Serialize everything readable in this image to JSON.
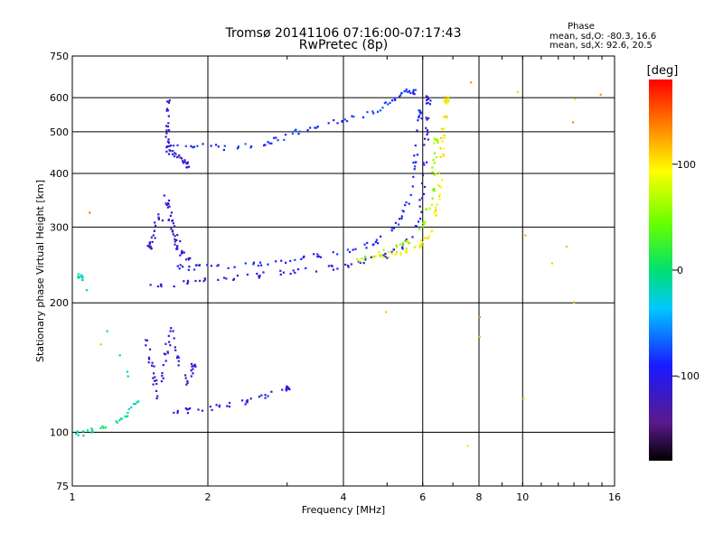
{
  "chart_data": {
    "type": "scatter",
    "title": "Tromsø 20141106 07:16:00-07:17:43",
    "subtitle": "RwPretec (8p)",
    "xlabel": "Frequency [MHz]",
    "ylabel": "Stationary phase Virtual Height [km]",
    "xscale": "log",
    "yscale": "log",
    "xlim": [
      1,
      16
    ],
    "ylim": [
      75,
      750
    ],
    "xticks": [
      1,
      2,
      4,
      6,
      8,
      10,
      16
    ],
    "yticks": [
      75,
      100,
      200,
      300,
      400,
      500,
      600,
      750
    ],
    "xtick_labels": [
      "1",
      "2",
      "4",
      "6",
      "8",
      "10",
      "16"
    ],
    "ytick_labels": [
      "75",
      "100",
      "200",
      "300",
      "400",
      "500",
      "600",
      "750"
    ],
    "grid": true,
    "stats": {
      "title": "Phase",
      "line1": "mean, sd,O: -80.3, 16.6",
      "line2": "mean, sd,X: 92.6, 20.5"
    },
    "colorbar": {
      "label": "[deg]",
      "range": [
        -180,
        180
      ],
      "ticks": [
        100,
        0,
        -100
      ],
      "tick_labels": [
        "100",
        "0",
        "-100"
      ]
    },
    "traces": [
      {
        "trace": "F2-O-lower",
        "phase": -110,
        "points": [
          [
            1.47,
            220
          ],
          [
            1.6,
            221
          ],
          [
            1.8,
            224
          ],
          [
            2.0,
            227
          ],
          [
            2.3,
            230
          ],
          [
            2.6,
            233
          ],
          [
            3.0,
            236
          ],
          [
            3.4,
            240
          ],
          [
            3.8,
            244
          ],
          [
            4.2,
            248
          ],
          [
            4.6,
            253
          ],
          [
            5.0,
            260
          ],
          [
            5.4,
            270
          ],
          [
            5.7,
            290
          ],
          [
            5.9,
            330
          ],
          [
            6.0,
            380
          ],
          [
            6.05,
            430
          ],
          [
            6.1,
            500
          ],
          [
            6.12,
            560
          ],
          [
            6.15,
            600
          ]
        ]
      },
      {
        "trace": "F2-O-upper",
        "phase": -95,
        "points": [
          [
            1.6,
            245
          ],
          [
            1.8,
            243
          ],
          [
            2.0,
            243
          ],
          [
            2.3,
            245
          ],
          [
            2.6,
            248
          ],
          [
            3.0,
            252
          ],
          [
            3.4,
            257
          ],
          [
            3.8,
            262
          ],
          [
            4.2,
            268
          ],
          [
            4.6,
            276
          ],
          [
            5.0,
            290
          ],
          [
            5.3,
            310
          ],
          [
            5.5,
            340
          ],
          [
            5.65,
            380
          ],
          [
            5.75,
            430
          ],
          [
            5.85,
            500
          ],
          [
            5.9,
            560
          ]
        ]
      },
      {
        "trace": "F2-cusp",
        "phase": -110,
        "points": [
          [
            1.6,
            360
          ],
          [
            1.62,
            340
          ],
          [
            1.64,
            320
          ],
          [
            1.66,
            300
          ],
          [
            1.68,
            285
          ],
          [
            1.7,
            272
          ],
          [
            1.74,
            262
          ],
          [
            1.8,
            255
          ],
          [
            1.9,
            248
          ],
          [
            1.55,
            320
          ],
          [
            1.52,
            300
          ],
          [
            1.5,
            285
          ],
          [
            1.48,
            270
          ]
        ]
      },
      {
        "trace": "F-upper-band",
        "phase": -85,
        "points": [
          [
            1.6,
            470
          ],
          [
            1.8,
            470
          ],
          [
            2.0,
            465
          ],
          [
            2.2,
            462
          ],
          [
            2.5,
            465
          ],
          [
            2.8,
            480
          ],
          [
            3.0,
            495
          ],
          [
            3.3,
            510
          ],
          [
            3.6,
            520
          ],
          [
            4.0,
            535
          ],
          [
            4.4,
            550
          ],
          [
            4.8,
            565
          ],
          [
            5.1,
            590
          ],
          [
            5.3,
            615
          ],
          [
            5.5,
            630
          ],
          [
            5.7,
            620
          ]
        ]
      },
      {
        "trace": "F-upper-spike",
        "phase": -110,
        "points": [
          [
            1.62,
            600
          ],
          [
            1.62,
            560
          ],
          [
            1.62,
            520
          ],
          [
            1.62,
            490
          ],
          [
            1.62,
            460
          ],
          [
            1.65,
            450
          ],
          [
            1.7,
            440
          ],
          [
            1.75,
            430
          ],
          [
            1.8,
            420
          ]
        ]
      },
      {
        "trace": "F2-X",
        "phase": 95,
        "points": [
          [
            4.6,
            255
          ],
          [
            5.0,
            258
          ],
          [
            5.3,
            262
          ],
          [
            5.6,
            268
          ],
          [
            5.9,
            275
          ],
          [
            6.1,
            285
          ],
          [
            6.3,
            300
          ],
          [
            6.4,
            330
          ],
          [
            6.5,
            370
          ],
          [
            6.55,
            410
          ],
          [
            6.6,
            460
          ],
          [
            6.65,
            510
          ],
          [
            6.7,
            560
          ],
          [
            6.75,
            600
          ]
        ]
      },
      {
        "trace": "F2-X-mixed",
        "phase": 60,
        "points": [
          [
            4.2,
            252
          ],
          [
            4.6,
            258
          ],
          [
            5.0,
            265
          ],
          [
            5.4,
            275
          ],
          [
            5.8,
            290
          ],
          [
            6.0,
            310
          ],
          [
            6.2,
            340
          ],
          [
            6.3,
            380
          ],
          [
            6.35,
            430
          ],
          [
            6.4,
            480
          ]
        ]
      },
      {
        "trace": "E-layer",
        "phase": -105,
        "points": [
          [
            1.65,
            112
          ],
          [
            1.8,
            113
          ],
          [
            2.0,
            114
          ],
          [
            2.2,
            116
          ],
          [
            2.4,
            118
          ],
          [
            2.6,
            121
          ],
          [
            2.8,
            124
          ],
          [
            3.0,
            128
          ]
        ]
      },
      {
        "trace": "E-spike",
        "phase": -110,
        "points": [
          [
            1.45,
            165
          ],
          [
            1.48,
            150
          ],
          [
            1.5,
            140
          ],
          [
            1.52,
            130
          ],
          [
            1.55,
            120
          ],
          [
            1.6,
            145
          ],
          [
            1.62,
            160
          ],
          [
            1.65,
            175
          ],
          [
            1.7,
            150
          ],
          [
            1.75,
            140
          ],
          [
            1.8,
            128
          ],
          [
            1.85,
            145
          ]
        ]
      },
      {
        "trace": "low-scatter",
        "phase": -15,
        "points": [
          [
            1.0,
            100
          ],
          [
            1.05,
            100
          ],
          [
            1.1,
            102
          ],
          [
            1.2,
            104
          ],
          [
            1.3,
            110
          ],
          [
            1.35,
            115
          ],
          [
            1.4,
            118
          ],
          [
            1.05,
            230
          ],
          [
            1.03,
            232
          ]
        ]
      },
      {
        "trace": "outliers",
        "phase": 120,
        "points": [
          [
            5.0,
            190
          ],
          [
            8.0,
            185
          ],
          [
            8.0,
            170
          ],
          [
            9.8,
            620
          ],
          [
            7.7,
            650
          ],
          [
            10.0,
            285
          ],
          [
            13.0,
            605
          ],
          [
            14.9,
            605
          ],
          [
            12.5,
            270
          ],
          [
            11.5,
            245
          ],
          [
            10.1,
            120
          ],
          [
            7.5,
            93
          ],
          [
            12.8,
            530
          ],
          [
            1.15,
            160
          ],
          [
            1.1,
            330
          ],
          [
            13.0,
            200
          ]
        ]
      }
    ]
  }
}
